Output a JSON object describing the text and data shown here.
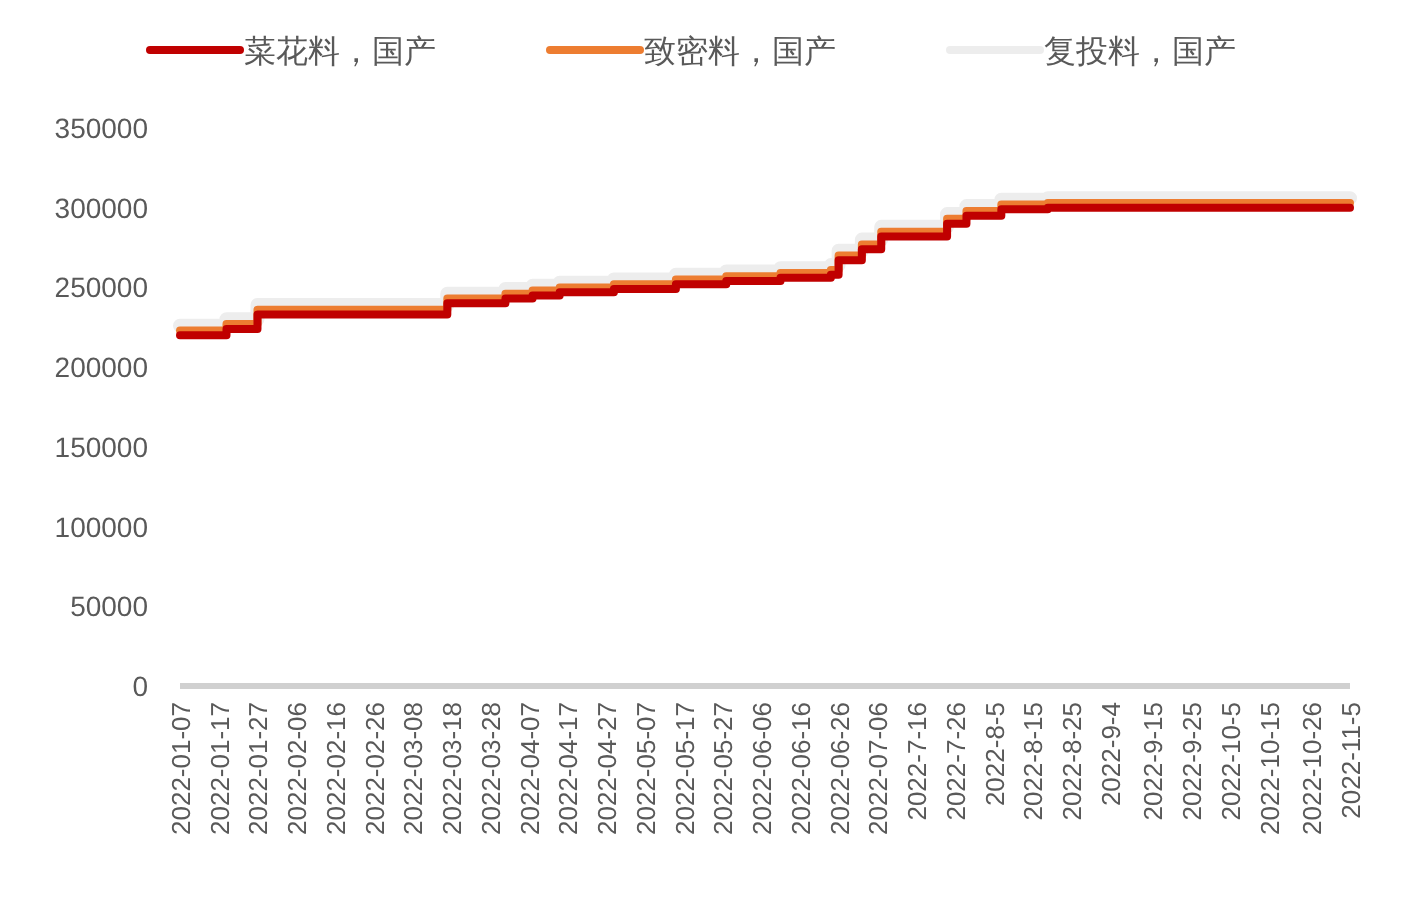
{
  "chart_data": {
    "type": "step",
    "legend": "top",
    "grid": false,
    "x": [
      "2022-01-07",
      "2022-01-19",
      "2022-01-27",
      "2022-03-17",
      "2022-04-01",
      "2022-04-08",
      "2022-04-15",
      "2022-04-29",
      "2022-05-15",
      "2022-05-28",
      "2022-06-11",
      "2022-06-24",
      "2022-06-26",
      "2022-07-02",
      "2022-07-07",
      "2022-07-24",
      "2022-07-29",
      "2022-08-07",
      "2022-08-19",
      "2022-11-05"
    ],
    "series": [
      {
        "name": "菜花料，国产",
        "color": "#c00000",
        "values": [
          220000,
          224000,
          233000,
          240000,
          243000,
          245000,
          247000,
          249000,
          252000,
          254000,
          256000,
          258000,
          267000,
          274000,
          282000,
          290000,
          295000,
          299000,
          300000,
          300000
        ]
      },
      {
        "name": "致密料，国产",
        "color": "#ed7d31",
        "values": [
          223000,
          227000,
          236000,
          243000,
          246000,
          248000,
          250000,
          252000,
          255000,
          257000,
          259000,
          261000,
          270000,
          277000,
          285000,
          293000,
          298000,
          302000,
          303000,
          303000
        ]
      },
      {
        "name": "复投料，国产",
        "color": "#ededed",
        "values": [
          226000,
          230000,
          239000,
          246000,
          249000,
          251000,
          253000,
          255000,
          258000,
          260000,
          262000,
          264000,
          273000,
          280000,
          288000,
          296000,
          301000,
          305000,
          306000,
          306000
        ]
      }
    ],
    "xlim": [
      "2022-01-07",
      "2022-11-05"
    ],
    "xticks": [
      {
        "value": "2022-01-07",
        "label": "2022-01-07"
      },
      {
        "value": "2022-01-17",
        "label": "2022-01-17"
      },
      {
        "value": "2022-01-27",
        "label": "2022-01-27"
      },
      {
        "value": "2022-02-06",
        "label": "2022-02-06"
      },
      {
        "value": "2022-02-16",
        "label": "2022-02-16"
      },
      {
        "value": "2022-02-26",
        "label": "2022-02-26"
      },
      {
        "value": "2022-03-08",
        "label": "2022-03-08"
      },
      {
        "value": "2022-03-18",
        "label": "2022-03-18"
      },
      {
        "value": "2022-03-28",
        "label": "2022-03-28"
      },
      {
        "value": "2022-04-07",
        "label": "2022-04-07"
      },
      {
        "value": "2022-04-17",
        "label": "2022-04-17"
      },
      {
        "value": "2022-04-27",
        "label": "2022-04-27"
      },
      {
        "value": "2022-05-07",
        "label": "2022-05-07"
      },
      {
        "value": "2022-05-17",
        "label": "2022-05-17"
      },
      {
        "value": "2022-05-27",
        "label": "2022-05-27"
      },
      {
        "value": "2022-06-06",
        "label": "2022-06-06"
      },
      {
        "value": "2022-06-16",
        "label": "2022-06-16"
      },
      {
        "value": "2022-06-26",
        "label": "2022-06-26"
      },
      {
        "value": "2022-07-06",
        "label": "2022-07-06"
      },
      {
        "value": "2022-07-16",
        "label": "2022-7-16"
      },
      {
        "value": "2022-07-26",
        "label": "2022-7-26"
      },
      {
        "value": "2022-08-05",
        "label": "2022-8-5"
      },
      {
        "value": "2022-08-15",
        "label": "2022-8-15"
      },
      {
        "value": "2022-08-25",
        "label": "2022-8-25"
      },
      {
        "value": "2022-09-04",
        "label": "2022-9-4"
      },
      {
        "value": "2022-09-15",
        "label": "2022-9-15"
      },
      {
        "value": "2022-09-25",
        "label": "2022-9-25"
      },
      {
        "value": "2022-10-05",
        "label": "2022-10-5"
      },
      {
        "value": "2022-10-15",
        "label": "2022-10-15"
      },
      {
        "value": "2022-10-26",
        "label": "2022-10-26"
      },
      {
        "value": "2022-11-05",
        "label": "2022-11-5"
      }
    ],
    "ylim": [
      0,
      350000
    ],
    "yticks": [
      0,
      50000,
      100000,
      150000,
      200000,
      250000,
      300000,
      350000
    ]
  }
}
